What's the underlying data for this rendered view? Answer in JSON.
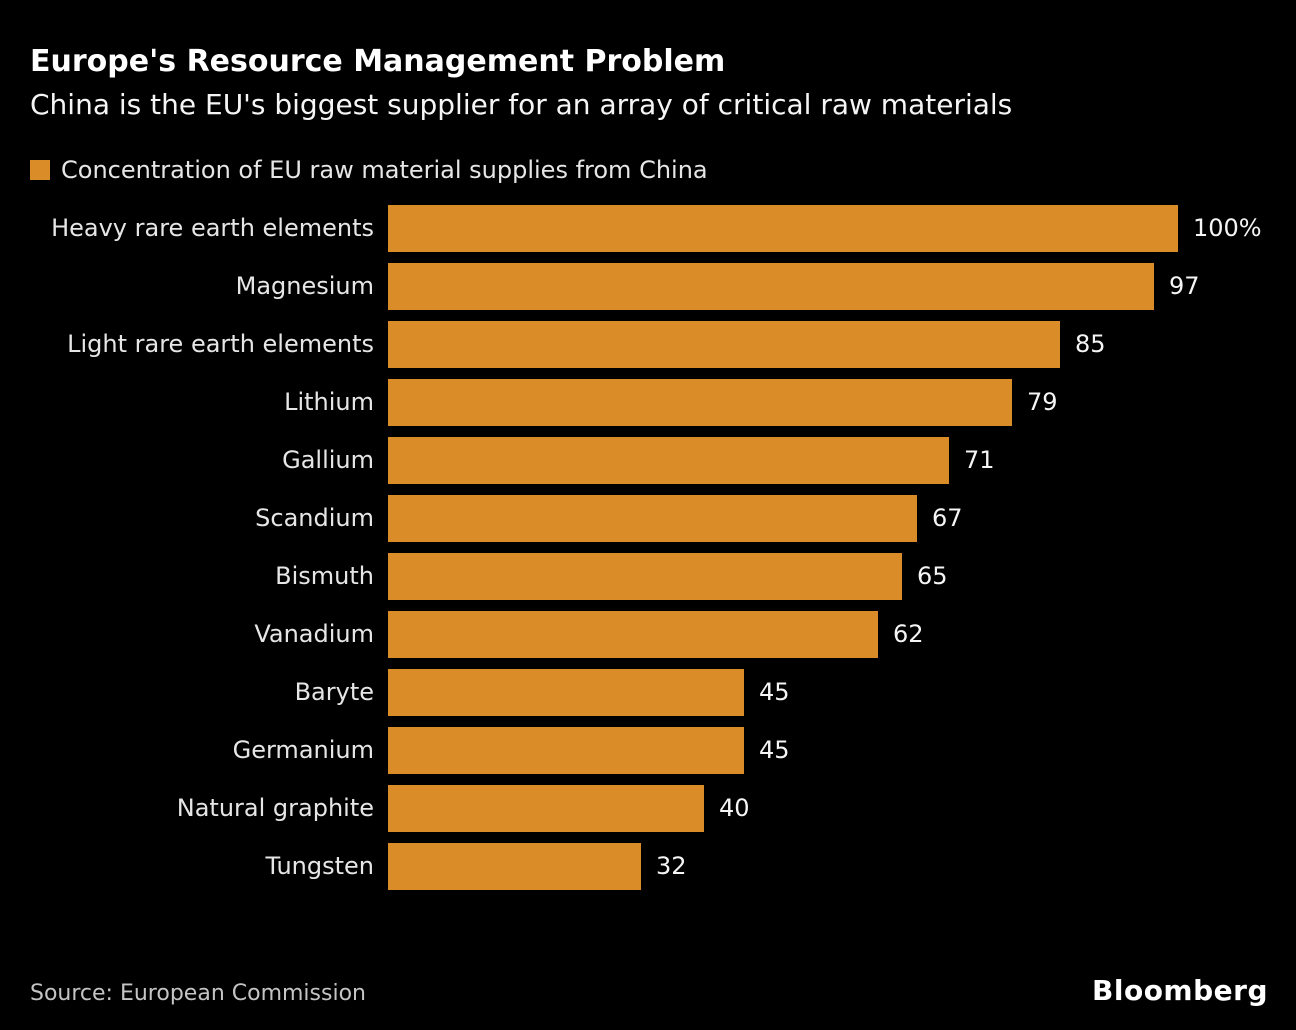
{
  "header": {
    "title": "Europe's Resource Management Problem",
    "subtitle": "China is the EU's biggest supplier for an array of critical raw materials"
  },
  "legend": {
    "label": "Concentration of EU raw material supplies from China",
    "swatch_color": "#D98C28"
  },
  "chart_data": {
    "type": "bar",
    "orientation": "horizontal",
    "title": "Europe's Resource Management Problem",
    "subtitle": "China is the EU's biggest supplier for an array of critical raw materials",
    "legend_entries": [
      "Concentration of EU raw material supplies from China"
    ],
    "categories": [
      "Heavy rare earth elements",
      "Magnesium",
      "Light rare earth elements",
      "Lithium",
      "Gallium",
      "Scandium",
      "Bismuth",
      "Vanadium",
      "Baryte",
      "Germanium",
      "Natural graphite",
      "Tungsten"
    ],
    "values": [
      100,
      97,
      85,
      79,
      71,
      67,
      65,
      62,
      45,
      45,
      40,
      32
    ],
    "value_labels": [
      "100%",
      "97",
      "85",
      "79",
      "71",
      "67",
      "65",
      "62",
      "45",
      "45",
      "40",
      "32"
    ],
    "unit": "percent",
    "xlim": [
      0,
      100
    ],
    "grid": false,
    "value_label_position": "right-of-bar",
    "bar_color": "#D98C28"
  },
  "footer": {
    "source": "Source: European Commission",
    "logo": "Bloomberg"
  },
  "colors": {
    "background": "#000000",
    "bar": "#D98C28",
    "title": "#FFFFFF",
    "subtitle": "#F5F5F5",
    "category_label": "#E6E6E6",
    "value_label": "#F5F5F5",
    "legend_text": "#E6E6E6",
    "source_text": "#C4C4C4",
    "logo_text": "#FFFFFF"
  }
}
